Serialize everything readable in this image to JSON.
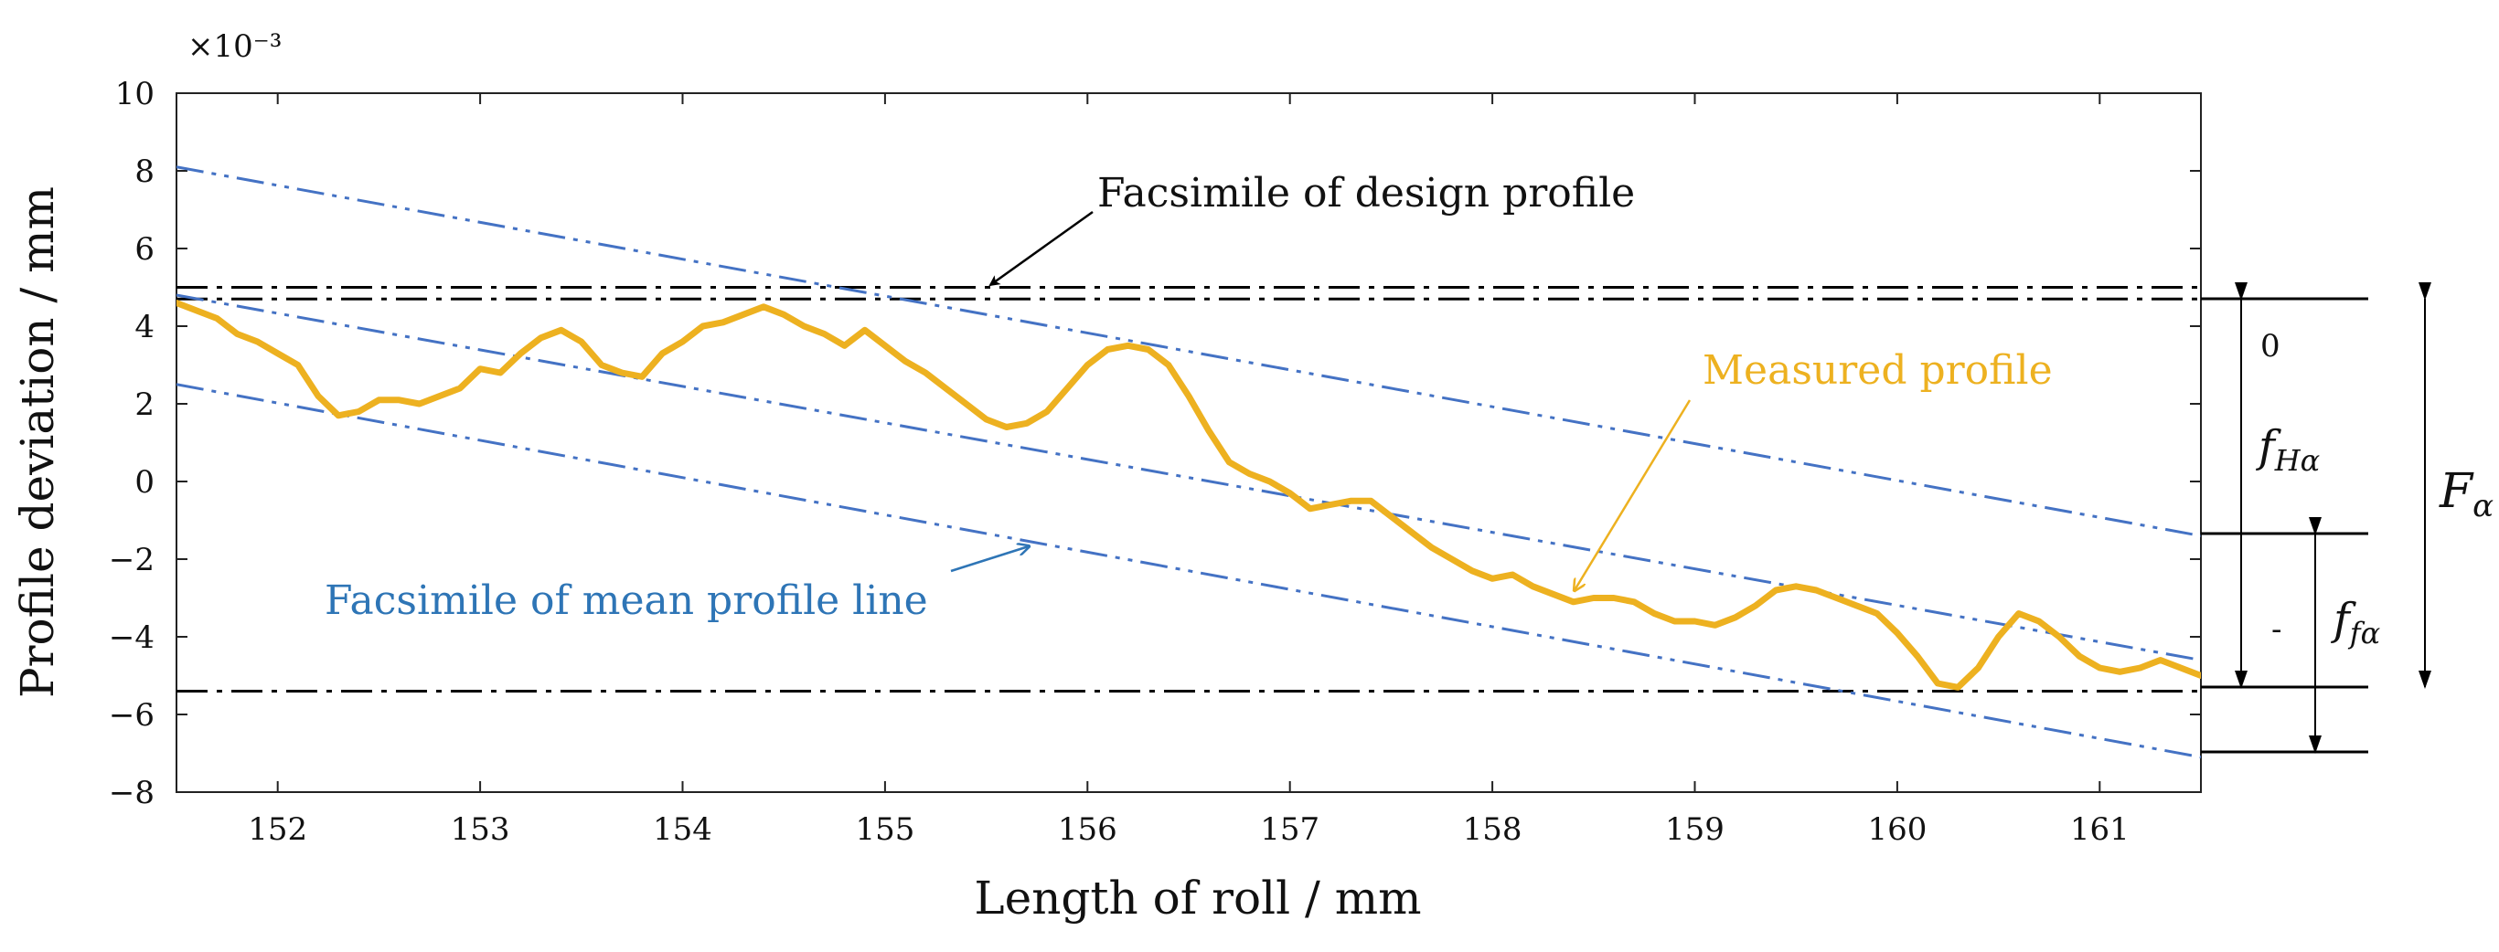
{
  "chart_data": {
    "type": "line",
    "title": "",
    "xlabel": "Length of roll / mm",
    "ylabel": "Profile deviation / mm",
    "y_multiplier": "×10⁻³",
    "xlim": [
      151.5,
      161.5
    ],
    "ylim": [
      -8,
      10
    ],
    "xticks": [
      152,
      153,
      154,
      155,
      156,
      157,
      158,
      159,
      160,
      161
    ],
    "yticks": [
      -8,
      -6,
      -4,
      -2,
      0,
      2,
      4,
      6,
      8,
      10
    ],
    "ytick_labels": [
      "−8",
      "−6",
      "−4",
      "−2",
      "0",
      "2",
      "4",
      "6",
      "8",
      "10"
    ],
    "grid": false,
    "colors": {
      "measured": "#EDB120",
      "mean_line": "#4472C4",
      "design": "#000000",
      "blue_text": "#2E75B6"
    },
    "measured_profile": {
      "name": "Measured profile",
      "x": [
        151.5,
        151.6,
        151.7,
        151.8,
        151.9,
        152.0,
        152.1,
        152.2,
        152.3,
        152.4,
        152.5,
        152.6,
        152.7,
        152.8,
        152.9,
        153.0,
        153.1,
        153.2,
        153.3,
        153.4,
        153.5,
        153.6,
        153.7,
        153.8,
        153.9,
        154.0,
        154.1,
        154.2,
        154.3,
        154.4,
        154.5,
        154.6,
        154.7,
        154.8,
        154.9,
        155.0,
        155.1,
        155.2,
        155.3,
        155.4,
        155.5,
        155.6,
        155.7,
        155.8,
        155.9,
        156.0,
        156.1,
        156.2,
        156.3,
        156.4,
        156.5,
        156.6,
        156.7,
        156.8,
        156.9,
        157.0,
        157.1,
        157.2,
        157.3,
        157.4,
        157.5,
        157.6,
        157.7,
        157.8,
        157.9,
        158.0,
        158.1,
        158.2,
        158.3,
        158.4,
        158.5,
        158.6,
        158.7,
        158.8,
        158.9,
        159.0,
        159.1,
        159.2,
        159.3,
        159.4,
        159.5,
        159.6,
        159.7,
        159.8,
        159.9,
        160.0,
        160.1,
        160.2,
        160.3,
        160.4,
        160.5,
        160.6,
        160.7,
        160.8,
        160.9,
        161.0,
        161.1,
        161.2,
        161.3,
        161.4,
        161.5
      ],
      "y": [
        4.6,
        4.4,
        4.2,
        3.8,
        3.6,
        3.3,
        3.0,
        2.2,
        1.7,
        1.8,
        2.1,
        2.1,
        2.0,
        2.2,
        2.4,
        2.9,
        2.8,
        3.3,
        3.7,
        3.9,
        3.6,
        3.0,
        2.8,
        2.7,
        3.3,
        3.6,
        4.0,
        4.1,
        4.3,
        4.5,
        4.3,
        4.0,
        3.8,
        3.5,
        3.9,
        3.5,
        3.1,
        2.8,
        2.4,
        2.0,
        1.6,
        1.4,
        1.5,
        1.8,
        2.4,
        3.0,
        3.4,
        3.5,
        3.4,
        3.0,
        2.2,
        1.3,
        0.5,
        0.2,
        0.0,
        -0.3,
        -0.7,
        -0.6,
        -0.5,
        -0.5,
        -0.9,
        -1.3,
        -1.7,
        -2.0,
        -2.3,
        -2.5,
        -2.4,
        -2.7,
        -2.9,
        -3.1,
        -3.0,
        -3.0,
        -3.1,
        -3.4,
        -3.6,
        -3.6,
        -3.7,
        -3.5,
        -3.2,
        -2.8,
        -2.7,
        -2.8,
        -3.0,
        -3.2,
        -3.4,
        -3.9,
        -4.5,
        -5.2,
        -5.3,
        -4.8,
        -4.0,
        -3.4,
        -3.6,
        -4.0,
        -4.5,
        -4.8,
        -4.9,
        -4.8,
        -4.6,
        -4.8,
        -5.0
      ]
    },
    "mean_lines": {
      "center": {
        "x": [
          151.5,
          161.5
        ],
        "y": [
          4.8,
          -4.6
        ]
      },
      "upper": {
        "x": [
          151.5,
          161.5
        ],
        "y": [
          8.1,
          -1.4
        ]
      },
      "lower": {
        "x": [
          151.5,
          161.5
        ],
        "y": [
          2.5,
          -7.1
        ]
      }
    },
    "design_lines": [
      5.0,
      4.7,
      -5.4
    ],
    "annotations": {
      "design": "Facsimile of design profile",
      "measured": "Measured profile",
      "mean": "Facsimile of mean profile line",
      "zero": "0",
      "minus": "-",
      "f_H_main": "f",
      "f_H_sub": "Hα",
      "f_f_main": "f",
      "f_f_sub": "fα",
      "F_main": "F",
      "F_sub": "α"
    }
  }
}
